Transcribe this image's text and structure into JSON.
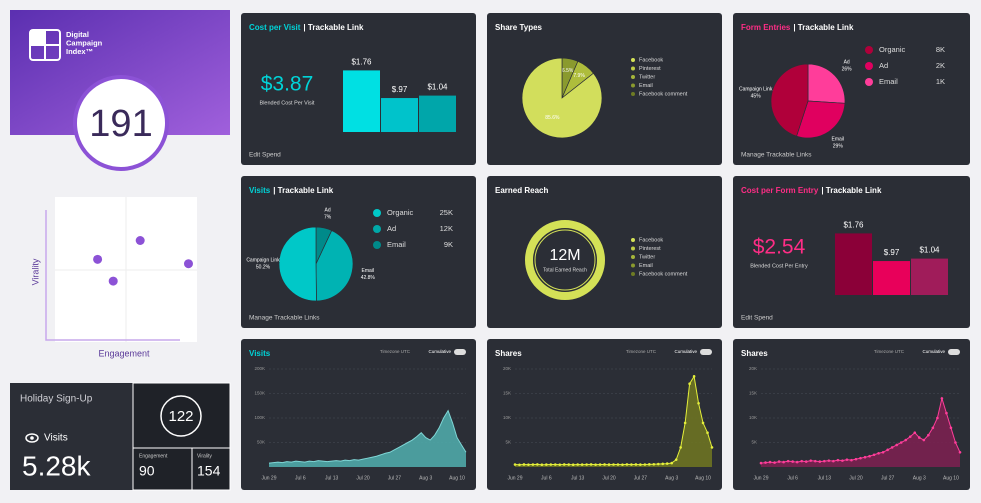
{
  "sidebar": {
    "logo_lines": [
      "Digital",
      "Campaign",
      "Index™"
    ],
    "index_score": "191",
    "quadrant": {
      "type": "scatter",
      "x_label": "Engagement",
      "y_label": "Virality",
      "x": [
        30,
        41,
        60,
        94
      ],
      "y": [
        57,
        42,
        70,
        54
      ],
      "xlim": [
        0,
        100
      ],
      "ylim": [
        0,
        100
      ],
      "color": "#8c52d6"
    },
    "campaign": {
      "title": "Holiday Sign-Up",
      "metric": "Visits",
      "metric_value": "5.28k",
      "score": "122",
      "engagement_label": "Engagement",
      "engagement": "90",
      "virality_label": "Virality",
      "virality": "154"
    }
  },
  "panels": [
    {
      "type": "bar",
      "title": "Cost per Visit",
      "subtitle": "| Trackable Link",
      "accent": "#00d4d8",
      "kpi": "$3.87",
      "kpi_label": "Blended Cost Per Visit",
      "values": [
        1.76,
        0.97,
        1.04
      ],
      "value_labels": [
        "$1.76",
        "$.97",
        "$1.04"
      ],
      "colors": [
        "#00e0e3",
        "#00c3cb",
        "#00a6aa"
      ],
      "ylim": [
        0,
        2
      ],
      "footer": "Edit Spend"
    },
    {
      "type": "pie",
      "title": "Share Types",
      "values": [
        6.5,
        7.9,
        85.6
      ],
      "value_labels": [
        "6.5%",
        "7.9%",
        "85.6%"
      ],
      "colors": [
        "#8a9a2e",
        "#aebd3c",
        "#d2de5c"
      ],
      "legend": {
        "names": [
          "Facebook",
          "Pinterest",
          "Twitter",
          "Email",
          "Facebook comment"
        ],
        "colors": [
          "#d4e157",
          "#c0cf45",
          "#a5b53a",
          "#8a9a2e",
          "#6e7c24"
        ]
      }
    },
    {
      "type": "pie",
      "title": "Form Entries",
      "subtitle": "| Trackable Link",
      "accent": "#ff2d86",
      "categories": [
        "Ad",
        "Email",
        "Campaign Link"
      ],
      "values": [
        26,
        29,
        45
      ],
      "value_labels": [
        "26%",
        "29%",
        "45%"
      ],
      "colors": [
        "#ff3d9a",
        "#e0005f",
        "#b0003a"
      ],
      "legend": {
        "names": [
          "Organic",
          "Ad",
          "Email"
        ],
        "values": [
          8000,
          2000,
          1000
        ],
        "value_labels": [
          "8K",
          "2K",
          "1K"
        ],
        "colors": [
          "#b0003a",
          "#e0005f",
          "#ff3d9a"
        ]
      },
      "footer": "Manage Trackable Links"
    },
    {
      "type": "pie",
      "title": "Visits",
      "subtitle": "| Trackable Link",
      "accent": "#00d4d8",
      "categories": [
        "Ad",
        "Email",
        "Campaign Link"
      ],
      "values": [
        7,
        42.8,
        50.2
      ],
      "value_labels": [
        "7%",
        "42.8%",
        "50.2%"
      ],
      "colors": [
        "#008a8a",
        "#00b3b3",
        "#00c8c8"
      ],
      "legend": {
        "names": [
          "Organic",
          "Ad",
          "Email"
        ],
        "values": [
          25000,
          12000,
          9000
        ],
        "value_labels": [
          "25K",
          "12K",
          "9K"
        ],
        "colors": [
          "#00c8c8",
          "#00a8a8",
          "#008a8a"
        ]
      },
      "footer": "Manage Trackable Links"
    },
    {
      "type": "donut",
      "title": "Earned Reach",
      "kpi": "12M",
      "kpi_label": "Total Earned Reach",
      "color": "#d4e157",
      "legend": {
        "names": [
          "Facebook",
          "Pinterest",
          "Twitter",
          "Email",
          "Facebook comment"
        ],
        "colors": [
          "#d4e157",
          "#c0cf45",
          "#a5b53a",
          "#8a9a2e",
          "#6e7c24"
        ]
      }
    },
    {
      "type": "bar",
      "title": "Cost per Form Entry",
      "subtitle": "| Trackable Link",
      "accent": "#ff2d86",
      "kpi": "$2.54",
      "kpi_label": "Blended Cost Per Entry",
      "values": [
        1.76,
        0.97,
        1.04
      ],
      "value_labels": [
        "$1.76",
        "$.97",
        "$1.04"
      ],
      "colors": [
        "#8b0038",
        "#e8005a",
        "#a01c5a"
      ],
      "ylim": [
        0,
        2
      ],
      "footer": "Edit Spend"
    },
    {
      "type": "area",
      "title": "Visits",
      "accent": "#00d4d8",
      "toggle_label": "Timezone UTC",
      "toggle_mode": "Cumulative",
      "color": "#4fa9a9",
      "line_color": "#7fd6d6",
      "markers": false,
      "values": [
        8000,
        9000,
        10000,
        9000,
        11000,
        10000,
        12000,
        11000,
        10000,
        12000,
        11000,
        13000,
        12000,
        11000,
        12000,
        13000,
        12000,
        14000,
        13000,
        15000,
        14000,
        16000,
        18000,
        20000,
        22000,
        25000,
        28000,
        30000,
        35000,
        40000,
        45000,
        50000,
        55000,
        62000,
        70000,
        60000,
        55000,
        65000,
        80000,
        100000,
        115000,
        90000,
        60000,
        45000,
        30000
      ],
      "xlim": [
        0,
        44
      ],
      "xticks": [
        {
          "value": 0,
          "label": "Jun 29"
        },
        {
          "value": 7,
          "label": "Jul 6"
        },
        {
          "value": 14,
          "label": "Jul 13"
        },
        {
          "value": 21,
          "label": "Jul 20"
        },
        {
          "value": 28,
          "label": "Jul 27"
        },
        {
          "value": 35,
          "label": "Aug 3"
        },
        {
          "value": 42,
          "label": "Aug 10"
        }
      ],
      "ylim": [
        0,
        200000
      ],
      "yticks": [
        {
          "value": 50000,
          "label": "50K"
        },
        {
          "value": 100000,
          "label": "100K"
        },
        {
          "value": 150000,
          "label": "150K"
        },
        {
          "value": 200000,
          "label": "200K"
        }
      ]
    },
    {
      "type": "area",
      "title": "Shares",
      "toggle_label": "Timezone UTC",
      "toggle_mode": "Cumulative",
      "color": "#6d7322",
      "line_color": "#e4ef3a",
      "markers": true,
      "values": [
        500,
        450,
        520,
        480,
        500,
        530,
        470,
        490,
        510,
        500,
        480,
        520,
        500,
        470,
        510,
        490,
        500,
        530,
        480,
        500,
        520,
        490,
        510,
        500,
        480,
        530,
        500,
        520,
        490,
        510,
        540,
        560,
        600,
        650,
        700,
        800,
        1500,
        4000,
        9000,
        17000,
        18500,
        13000,
        9000,
        7000,
        4000
      ],
      "xlim": [
        0,
        44
      ],
      "xticks": [
        {
          "value": 0,
          "label": "Jun 29"
        },
        {
          "value": 7,
          "label": "Jul 6"
        },
        {
          "value": 14,
          "label": "Jul 13"
        },
        {
          "value": 21,
          "label": "Jul 20"
        },
        {
          "value": 28,
          "label": "Jul 27"
        },
        {
          "value": 35,
          "label": "Aug 3"
        },
        {
          "value": 42,
          "label": "Aug 10"
        }
      ],
      "ylim": [
        0,
        20000
      ],
      "yticks": [
        {
          "value": 5000,
          "label": "5K"
        },
        {
          "value": 10000,
          "label": "10K"
        },
        {
          "value": 15000,
          "label": "15K"
        },
        {
          "value": 20000,
          "label": "20K"
        }
      ]
    },
    {
      "type": "area",
      "title": "Shares",
      "toggle_label": "Timezone UTC",
      "toggle_mode": "Cumulative",
      "color": "#7a2150",
      "line_color": "#ff3d9a",
      "markers": true,
      "values": [
        800,
        900,
        1000,
        900,
        1100,
        1000,
        1200,
        1100,
        1000,
        1200,
        1100,
        1300,
        1200,
        1100,
        1200,
        1300,
        1200,
        1400,
        1300,
        1500,
        1400,
        1600,
        1800,
        2000,
        2200,
        2500,
        2800,
        3000,
        3500,
        4000,
        4500,
        5000,
        5500,
        6200,
        7000,
        6000,
        5500,
        6500,
        8000,
        10000,
        14000,
        11000,
        8000,
        5000,
        3000
      ],
      "xlim": [
        0,
        44
      ],
      "xticks": [
        {
          "value": 0,
          "label": "Jun 29"
        },
        {
          "value": 7,
          "label": "Jul 6"
        },
        {
          "value": 14,
          "label": "Jul 13"
        },
        {
          "value": 21,
          "label": "Jul 20"
        },
        {
          "value": 28,
          "label": "Jul 27"
        },
        {
          "value": 35,
          "label": "Aug 3"
        },
        {
          "value": 42,
          "label": "Aug 10"
        }
      ],
      "ylim": [
        0,
        20000
      ],
      "yticks": [
        {
          "value": 5000,
          "label": "5K"
        },
        {
          "value": 10000,
          "label": "10K"
        },
        {
          "value": 15000,
          "label": "15K"
        },
        {
          "value": 20000,
          "label": "20K"
        }
      ]
    }
  ]
}
